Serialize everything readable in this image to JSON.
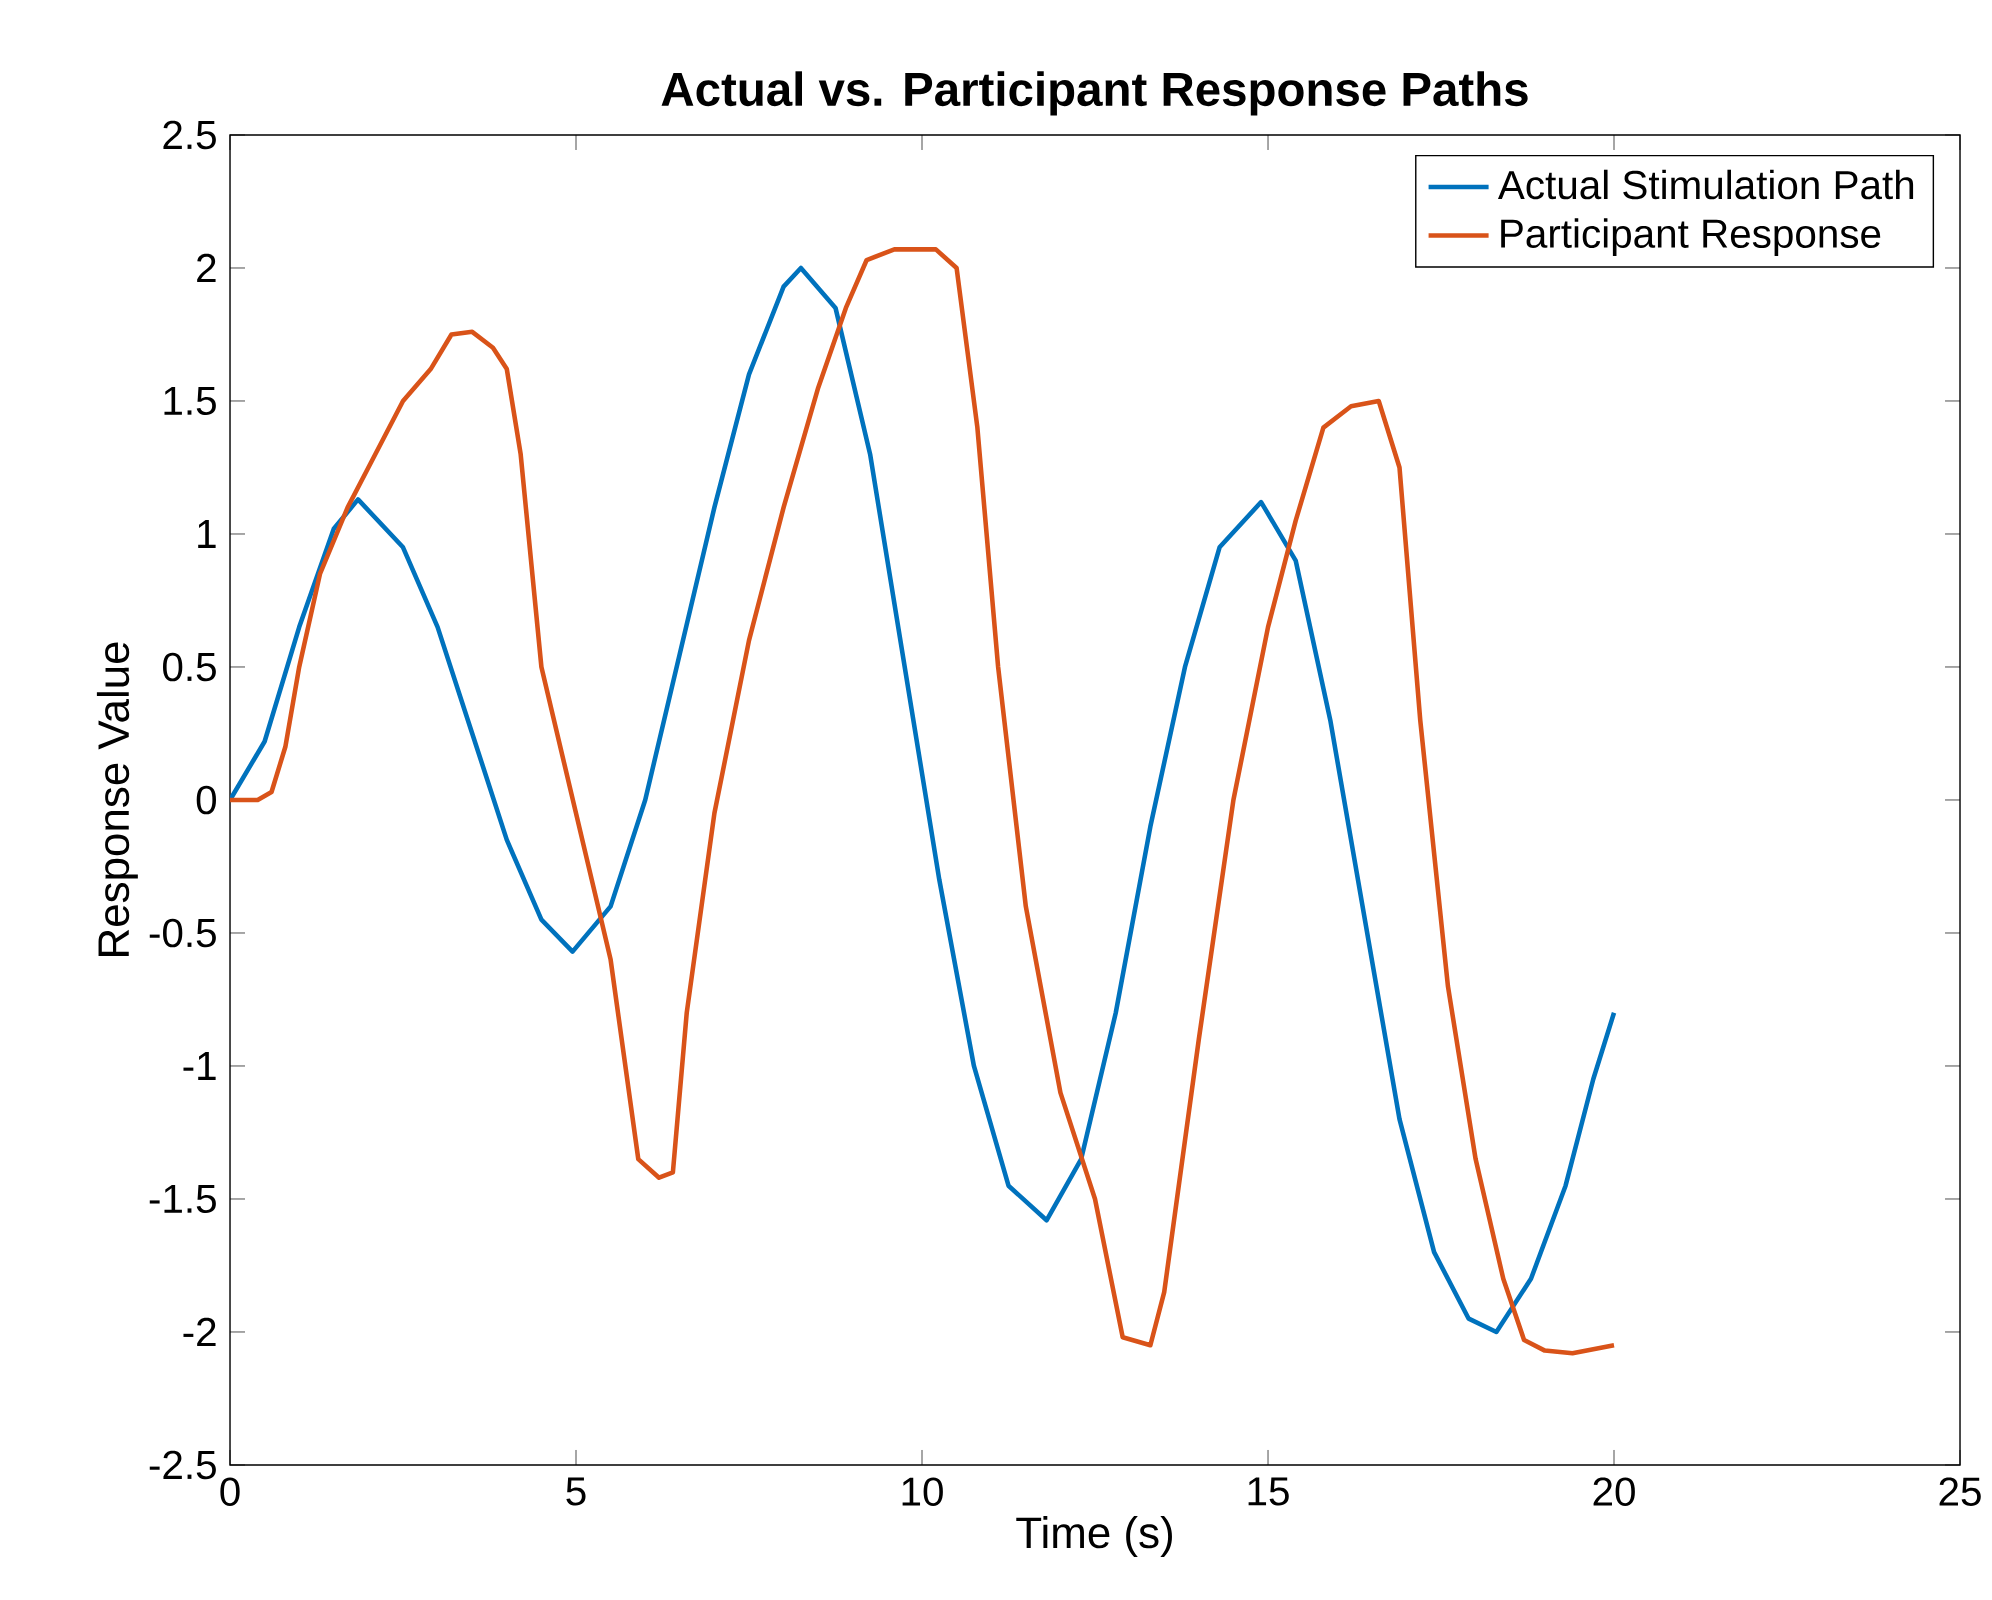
{
  "chart_data": {
    "type": "line",
    "title": "Actual vs. Participant Response Paths",
    "xlabel": "Time (s)",
    "ylabel": "Response Value",
    "xlim": [
      0,
      25
    ],
    "xticks": [
      0,
      5,
      10,
      15,
      20,
      25
    ],
    "ylim": [
      -2.5,
      2.5
    ],
    "yticks": [
      -2.5,
      -2,
      -1.5,
      -1,
      -0.5,
      0,
      0.5,
      1,
      1.5,
      2,
      2.5
    ],
    "grid": false,
    "legend": "top right",
    "marker": "none",
    "line_style": "solid",
    "series": [
      {
        "name": "Actual Stimulation Path",
        "color": "#0072bd",
        "x": [
          0,
          0.5,
          1.0,
          1.5,
          1.85,
          2.5,
          3.0,
          3.5,
          4.0,
          4.5,
          4.95,
          5.5,
          6.0,
          6.5,
          7.0,
          7.5,
          8.0,
          8.25,
          8.75,
          9.25,
          9.75,
          10.25,
          10.75,
          11.25,
          11.8,
          12.3,
          12.8,
          13.3,
          13.8,
          14.3,
          14.9,
          15.4,
          15.9,
          16.4,
          16.9,
          17.4,
          17.9,
          18.3,
          18.8,
          19.3,
          19.7,
          20
        ],
        "values": [
          0,
          0.22,
          0.65,
          1.02,
          1.13,
          0.95,
          0.65,
          0.25,
          -0.15,
          -0.45,
          -0.57,
          -0.4,
          0.0,
          0.55,
          1.1,
          1.6,
          1.93,
          2.0,
          1.85,
          1.3,
          0.5,
          -0.3,
          -1.0,
          -1.45,
          -1.58,
          -1.35,
          -0.8,
          -0.1,
          0.5,
          0.95,
          1.12,
          0.9,
          0.3,
          -0.45,
          -1.2,
          -1.7,
          -1.95,
          -2.0,
          -1.8,
          -1.45,
          -1.05,
          -0.8
        ]
      },
      {
        "name": "Participant Response",
        "color": "#d95319",
        "x": [
          0,
          0.4,
          0.6,
          0.8,
          1.0,
          1.3,
          1.7,
          2.0,
          2.5,
          2.9,
          3.2,
          3.5,
          3.8,
          4.0,
          4.2,
          4.5,
          5.0,
          5.5,
          5.9,
          6.2,
          6.4,
          6.6,
          7.0,
          7.5,
          8.0,
          8.5,
          8.9,
          9.2,
          9.6,
          10.2,
          10.5,
          10.8,
          11.1,
          11.5,
          12.0,
          12.5,
          12.9,
          13.3,
          13.5,
          14.0,
          14.5,
          15.0,
          15.4,
          15.8,
          16.2,
          16.6,
          16.9,
          17.2,
          17.6,
          18.0,
          18.4,
          18.7,
          19.0,
          19.4,
          20.0
        ],
        "values": [
          0,
          0.0,
          0.03,
          0.2,
          0.5,
          0.85,
          1.1,
          1.25,
          1.5,
          1.62,
          1.75,
          1.76,
          1.7,
          1.62,
          1.3,
          0.5,
          -0.05,
          -0.6,
          -1.35,
          -1.42,
          -1.4,
          -0.8,
          -0.05,
          0.6,
          1.1,
          1.55,
          1.85,
          2.03,
          2.07,
          2.07,
          2.0,
          1.4,
          0.5,
          -0.4,
          -1.1,
          -1.5,
          -2.02,
          -2.05,
          -1.85,
          -0.9,
          0.0,
          0.65,
          1.05,
          1.4,
          1.48,
          1.5,
          1.25,
          0.3,
          -0.7,
          -1.35,
          -1.8,
          -2.03,
          -2.07,
          -2.08,
          -2.05
        ]
      }
    ]
  }
}
